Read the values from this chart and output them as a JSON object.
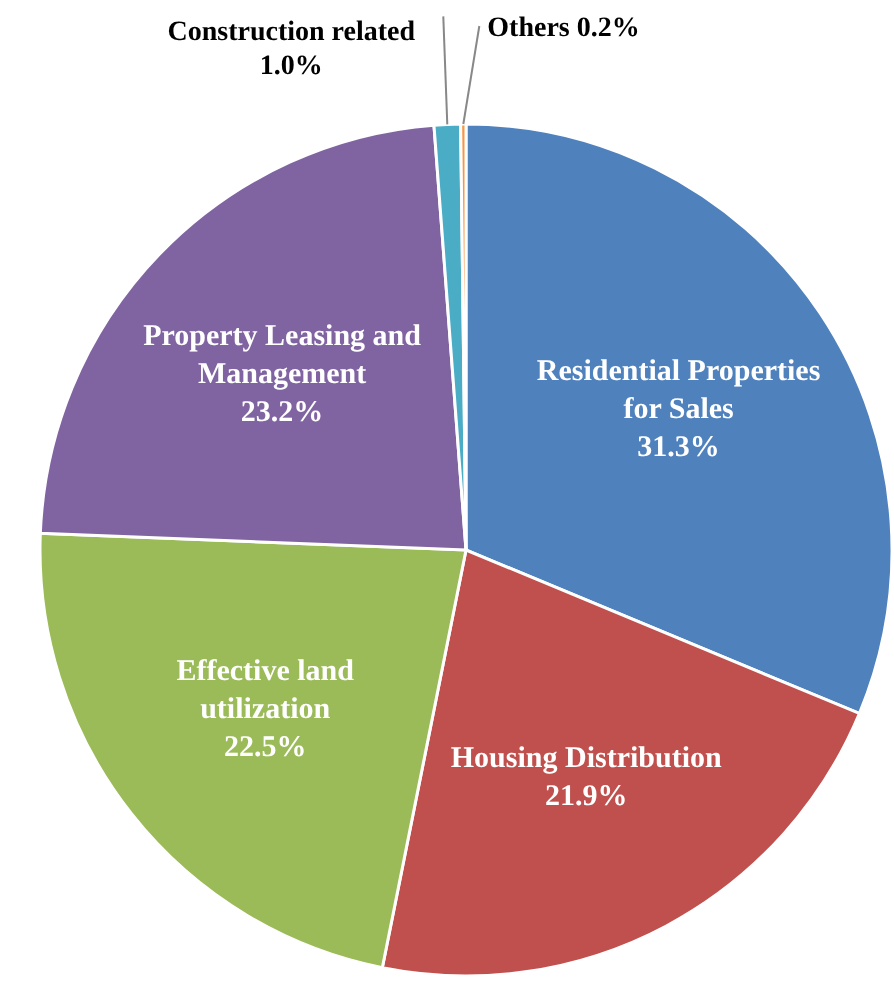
{
  "chart_data": {
    "type": "pie",
    "categories": [
      "Residential Properties for Sales",
      "Housing Distribution",
      "Effective land utilization",
      "Property Leasing and Management",
      "Construction related",
      "Others"
    ],
    "values": [
      31.3,
      21.9,
      22.5,
      23.2,
      1.0,
      0.2
    ],
    "value_labels": [
      "31.3%",
      "21.9%",
      "22.5%",
      "23.2%",
      "1.0%",
      "0.2%"
    ],
    "colors": [
      "#4f81bd",
      "#c0504d",
      "#9bbb59",
      "#8064a2",
      "#4bacc6",
      "#f79646"
    ]
  }
}
